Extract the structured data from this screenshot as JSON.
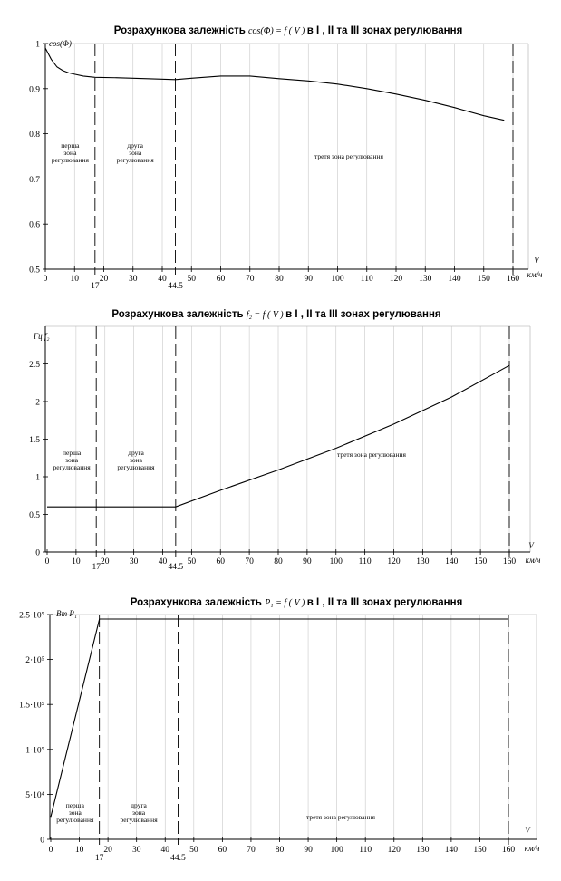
{
  "chart_data": [
    {
      "type": "line",
      "title_text": "Розрахункова залежність",
      "title_formula": "cos(Φ) = f ( V )",
      "title_suffix": "в І , ІІ та ІІІ зонах регулювання",
      "ylabel": "cos(Φ)",
      "xlabel_top": "V",
      "xlabel_bottom": "км/ч",
      "xlim": [
        0,
        165
      ],
      "ylim": [
        0.5,
        1
      ],
      "x_ticks": [
        "0",
        "10",
        "20",
        "30",
        "40",
        "50",
        "60",
        "70",
        "80",
        "90",
        "100",
        "110",
        "120",
        "130",
        "140",
        "150",
        "160"
      ],
      "y_ticks": [
        "0.5",
        "0.6",
        "0.7",
        "0.8",
        "0.9",
        "1"
      ],
      "y_tick_values": [
        0.5,
        0.6,
        0.7,
        0.8,
        0.9,
        1
      ],
      "grid_x": true,
      "grid_y": false,
      "zone_boundaries": [
        17,
        44.5,
        160
      ],
      "zone_labels": [
        "перша зона регулювання",
        "друга зона регулювання",
        "третя зона регулювання"
      ],
      "series": [
        {
          "x": [
            0,
            2,
            4,
            6,
            8,
            10,
            13,
            17,
            25,
            35,
            44.5,
            50,
            60,
            70,
            80,
            90,
            100,
            110,
            120,
            130,
            140,
            150,
            157
          ],
          "y": [
            0.99,
            0.965,
            0.948,
            0.94,
            0.935,
            0.932,
            0.928,
            0.925,
            0.924,
            0.922,
            0.92,
            0.923,
            0.928,
            0.928,
            0.922,
            0.917,
            0.91,
            0.9,
            0.888,
            0.874,
            0.858,
            0.84,
            0.83
          ]
        }
      ]
    },
    {
      "type": "line",
      "title_text": "Розрахункова залежність",
      "title_formula": "f₂ = f ( V )",
      "title_suffix": "в І , ІІ та ІІІ зонах регулювання",
      "ylabel": "Гц   f₂",
      "xlabel_top": "V",
      "xlabel_bottom": "км/ч",
      "xlim": [
        0,
        165
      ],
      "ylim": [
        0,
        3
      ],
      "x_ticks": [
        "0",
        "10",
        "20",
        "30",
        "40",
        "50",
        "60",
        "70",
        "80",
        "90",
        "100",
        "110",
        "120",
        "130",
        "140",
        "150",
        "160"
      ],
      "y_ticks": [
        "0",
        "0.5",
        "1",
        "1.5",
        "2",
        "2.5"
      ],
      "y_tick_values": [
        0,
        0.5,
        1,
        1.5,
        2,
        2.5
      ],
      "grid_x": true,
      "grid_y": false,
      "zone_boundaries": [
        17,
        44.5,
        160
      ],
      "zone_labels": [
        "перша зона регулювання",
        "друга зона регулювання",
        "третя зона регулювання"
      ],
      "series": [
        {
          "x": [
            0,
            17,
            44.5,
            60,
            80,
            100,
            120,
            140,
            160
          ],
          "y": [
            0.6,
            0.6,
            0.6,
            0.82,
            1.09,
            1.38,
            1.7,
            2.06,
            2.48
          ]
        }
      ]
    },
    {
      "type": "line",
      "title_text": "Розрахункова залежність",
      "title_formula": "P₁ = f ( V )",
      "title_suffix": "в І , ІІ та ІІІ зонах регулювання",
      "ylabel": "Вт  P₁",
      "xlabel_top": "V",
      "xlabel_bottom": "км/ч",
      "xlim": [
        0,
        165
      ],
      "ylim": [
        0,
        250000
      ],
      "x_ticks": [
        "0",
        "10",
        "20",
        "30",
        "40",
        "50",
        "60",
        "70",
        "80",
        "90",
        "100",
        "110",
        "120",
        "130",
        "140",
        "150",
        "160"
      ],
      "y_ticks": [
        "0",
        "5·10⁴",
        "1·10⁵",
        "1.5·10⁵",
        "2·10⁵",
        "2.5·10⁵"
      ],
      "y_tick_values": [
        0,
        50000,
        100000,
        150000,
        200000,
        250000
      ],
      "grid_x": true,
      "grid_y": false,
      "zone_boundaries": [
        17,
        44.5,
        160
      ],
      "zone_labels": [
        "перша зона регулювання",
        "друга зона регулювання",
        "третя зона регулювання"
      ],
      "series": [
        {
          "x": [
            0,
            17,
            44.5,
            160
          ],
          "y": [
            25000,
            245000,
            245000,
            245000
          ]
        }
      ]
    }
  ],
  "boundary_labels": [
    "17",
    "44.5",
    "160"
  ]
}
